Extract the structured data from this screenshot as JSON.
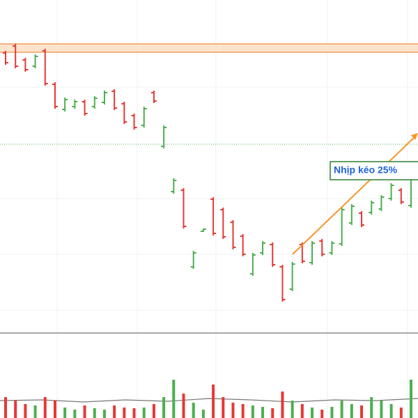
{
  "chart_data": {
    "type": "ohlc",
    "annotation": "Nhịp kéo 25%",
    "up_color": "#4caf50",
    "down_color": "#e53935",
    "ylim": [
      0,
      478
    ],
    "volume_ylim": [
      0,
      120
    ],
    "open": [
      402,
      412,
      392,
      383,
      405,
      357,
      321,
      325,
      332,
      325,
      331,
      347,
      329,
      312,
      298,
      345,
      268,
      203,
      205,
      95,
      146,
      192,
      177,
      159,
      139,
      85,
      115,
      127,
      95,
      63,
      127,
      101,
      132,
      115,
      128,
      158,
      172,
      173,
      178,
      193,
      205,
      183
    ],
    "high": [
      405,
      415,
      395,
      400,
      408,
      360,
      338,
      335,
      335,
      340,
      348,
      350,
      332,
      315,
      325,
      348,
      298,
      222,
      208,
      118,
      150,
      195,
      180,
      162,
      142,
      115,
      132,
      130,
      98,
      102,
      130,
      132,
      135,
      132,
      180,
      185,
      175,
      190,
      198,
      215,
      208,
      230
    ],
    "low": [
      385,
      380,
      375,
      380,
      355,
      322,
      318,
      322,
      312,
      322,
      328,
      320,
      300,
      292,
      295,
      330,
      265,
      200,
      150,
      92,
      145,
      140,
      135,
      120,
      110,
      82,
      112,
      95,
      45,
      60,
      100,
      98,
      110,
      112,
      125,
      155,
      152,
      170,
      175,
      190,
      185,
      180
    ],
    "close": [
      388,
      383,
      378,
      397,
      358,
      325,
      335,
      332,
      315,
      337,
      345,
      323,
      303,
      295,
      322,
      333,
      295,
      219,
      153,
      115,
      149,
      143,
      138,
      123,
      113,
      112,
      129,
      98,
      48,
      99,
      103,
      129,
      113,
      129,
      177,
      182,
      155,
      187,
      195,
      212,
      188,
      227
    ],
    "volume": [
      30,
      25,
      20,
      18,
      30,
      25,
      15,
      12,
      18,
      14,
      12,
      18,
      15,
      14,
      15,
      20,
      30,
      55,
      35,
      22,
      12,
      48,
      30,
      22,
      20,
      18,
      16,
      14,
      38,
      25,
      20,
      15,
      12,
      16,
      25,
      20,
      18,
      30,
      25,
      20,
      15,
      55
    ]
  }
}
